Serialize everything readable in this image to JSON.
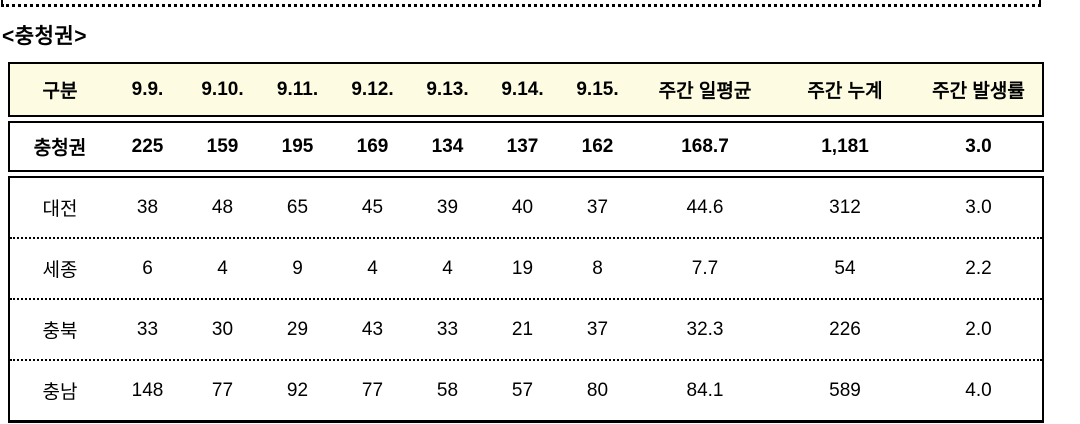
{
  "section": {
    "title": "<충청권>"
  },
  "table": {
    "columns": [
      "구분",
      "9.9.",
      "9.10.",
      "9.11.",
      "9.12.",
      "9.13.",
      "9.14.",
      "9.15.",
      "주간 일평균",
      "주간 누계",
      "주간 발생률"
    ],
    "total_row": {
      "label": "충청권",
      "values": [
        "225",
        "159",
        "195",
        "169",
        "134",
        "137",
        "162",
        "168.7",
        "1,181",
        "3.0"
      ]
    },
    "rows": [
      {
        "label": "대전",
        "values": [
          "38",
          "48",
          "65",
          "45",
          "39",
          "40",
          "37",
          "44.6",
          "312",
          "3.0"
        ]
      },
      {
        "label": "세종",
        "values": [
          "6",
          "4",
          "9",
          "4",
          "4",
          "19",
          "8",
          "7.7",
          "54",
          "2.2"
        ]
      },
      {
        "label": "충북",
        "values": [
          "33",
          "30",
          "29",
          "43",
          "33",
          "21",
          "37",
          "32.3",
          "226",
          "2.0"
        ]
      },
      {
        "label": "충남",
        "values": [
          "148",
          "77",
          "92",
          "77",
          "58",
          "57",
          "80",
          "84.1",
          "589",
          "4.0"
        ]
      }
    ]
  },
  "colors": {
    "header_background": "#fdfce3",
    "border": "#000000",
    "text": "#000000"
  }
}
